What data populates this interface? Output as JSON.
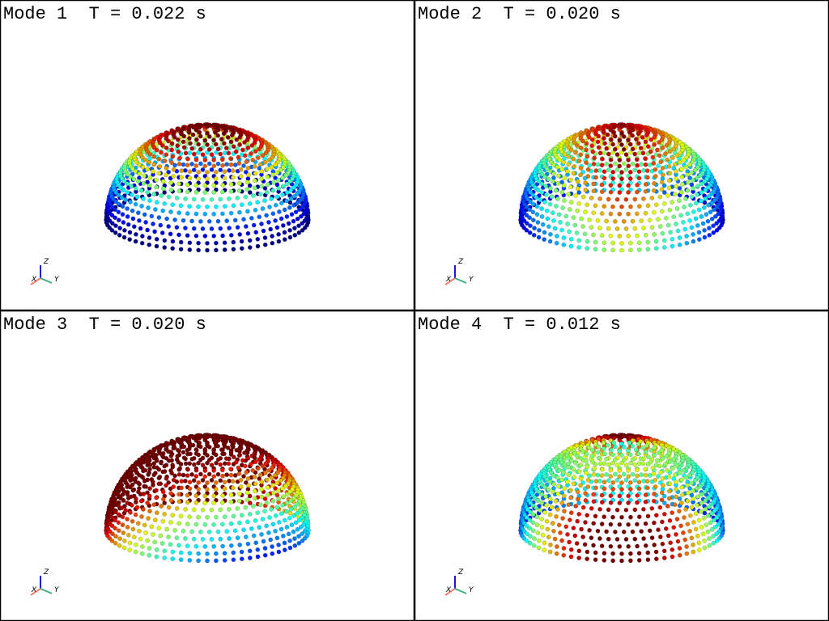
{
  "panels": [
    {
      "title": "Mode 1  T = 0.022 s"
    },
    {
      "title": "Mode 2  T = 0.020 s"
    },
    {
      "title": "Mode 3  T = 0.020 s"
    },
    {
      "title": "Mode 4  T = 0.012 s"
    }
  ],
  "axes": {
    "x": "X",
    "y": "Y",
    "z": "Z"
  }
}
